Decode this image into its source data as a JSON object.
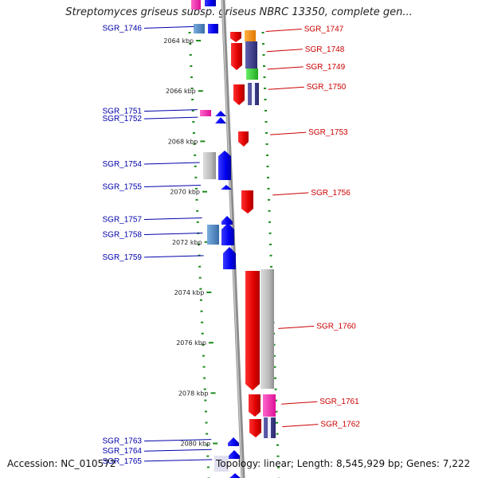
{
  "title": "Streptomyces griseus subsp. griseus NBRC 13350, complete gen...",
  "footer": {
    "accession": "Accession: NC_010572",
    "info": "Topology: linear; Length: 8,545,929 bp; Genes: 7,222"
  },
  "colors": {
    "backbone": "#888888",
    "tick": "#1a8a1a",
    "left_label": "#0000aa",
    "right_label": "#cc0000"
  },
  "ticks": [
    {
      "label": "2064 kbp",
      "kbp": 2064
    },
    {
      "label": "2066 kbp",
      "kbp": 2066
    },
    {
      "label": "2068 kbp",
      "kbp": 2068
    },
    {
      "label": "2070 kbp",
      "kbp": 2070
    },
    {
      "label": "2072 kbp",
      "kbp": 2072
    },
    {
      "label": "2074 kbp",
      "kbp": 2074
    },
    {
      "label": "2076 kbp",
      "kbp": 2076
    },
    {
      "label": "2078 kbp",
      "kbp": 2078
    },
    {
      "label": "2080 kbp",
      "kbp": 2080
    }
  ],
  "left_genes": [
    {
      "label": "SGR_1746",
      "kbp": 2063.6
    },
    {
      "label": "SGR_1751",
      "kbp": 2066.9
    },
    {
      "label": "SGR_1752",
      "kbp": 2067.2
    },
    {
      "label": "SGR_1754",
      "kbp": 2069.0
    },
    {
      "label": "SGR_1755",
      "kbp": 2069.9
    },
    {
      "label": "SGR_1757",
      "kbp": 2071.2
    },
    {
      "label": "SGR_1758",
      "kbp": 2071.8
    },
    {
      "label": "SGR_1759",
      "kbp": 2072.7
    },
    {
      "label": "SGR_1763",
      "kbp": 2080.0
    },
    {
      "label": "SGR_1764",
      "kbp": 2080.4
    },
    {
      "label": "SGR_1765",
      "kbp": 2080.8
    }
  ],
  "right_genes": [
    {
      "label": "SGR_1747",
      "kbp": 2063.7
    },
    {
      "label": "SGR_1748",
      "kbp": 2064.5
    },
    {
      "label": "SGR_1749",
      "kbp": 2065.2
    },
    {
      "label": "SGR_1750",
      "kbp": 2066.0
    },
    {
      "label": "SGR_1753",
      "kbp": 2067.8
    },
    {
      "label": "SGR_1756",
      "kbp": 2070.2
    },
    {
      "label": "SGR_1760",
      "kbp": 2075.5
    },
    {
      "label": "SGR_1761",
      "kbp": 2078.5
    },
    {
      "label": "SGR_1762",
      "kbp": 2079.4
    }
  ]
}
